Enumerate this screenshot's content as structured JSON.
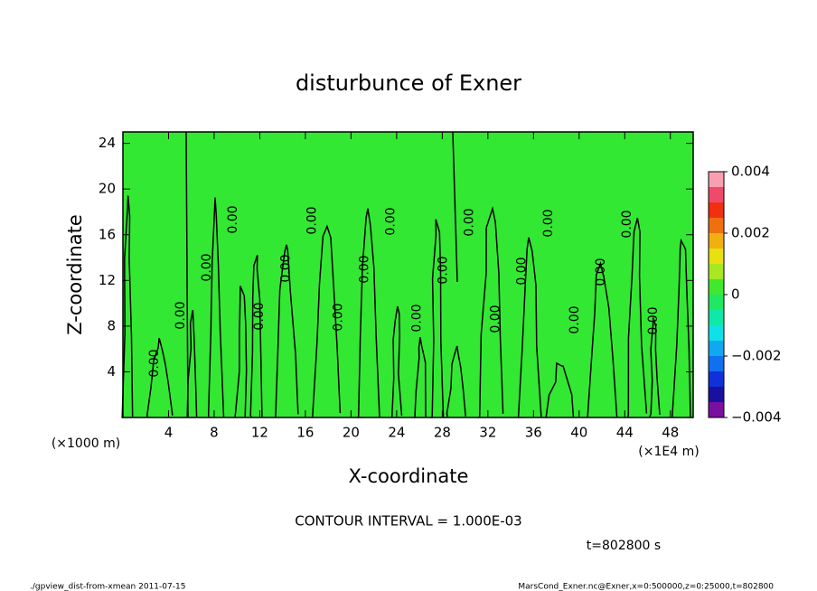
{
  "chart_data": {
    "type": "contour",
    "title": "disturbunce of Exner",
    "xlabel": "X-coordinate",
    "ylabel": "Z-coordinate",
    "xunit": "(×1E4 m)",
    "yunit": "(×1000 m)",
    "xlim": [
      0,
      50
    ],
    "xticks": [
      4,
      8,
      12,
      16,
      20,
      24,
      28,
      32,
      36,
      40,
      44,
      48
    ],
    "ylim": [
      0,
      25
    ],
    "yticks": [
      4,
      8,
      12,
      16,
      20,
      24
    ],
    "field_color": "#33e833",
    "line_color": "#000000",
    "contour_labels": [
      "0.00",
      "0.00",
      "0.00",
      "0.00",
      "0.00",
      "0.00",
      "0.00",
      "0.00",
      "0.00",
      "0.00",
      "0.00",
      "0.00",
      "0.00",
      "0.00",
      "0.00",
      "0.00",
      "0.00",
      "0.00",
      "0.00",
      "0.00"
    ],
    "colorbar": {
      "lim": [
        -0.004,
        0.004
      ],
      "ticks": [
        0.004,
        0.002,
        0,
        {
          "value": -0.002,
          "label": "−0.002"
        },
        {
          "value": -0.004,
          "label": "−0.004"
        }
      ],
      "colors": [
        "#7a10a0",
        "#1a10a0",
        "#1030d8",
        "#1070f0",
        "#10a8f0",
        "#10e0e8",
        "#10e8a8",
        "#20e860",
        "#40e830",
        "#a8e820",
        "#e8e010",
        "#f0b010",
        "#f07010",
        "#f03010",
        "#f04a6a",
        "#f8a0b0"
      ]
    },
    "annotation": "CONTOUR INTERVAL = 1.000E-03",
    "time_label": "t=802800 s",
    "footer_left": "./gpview_dist-from-xmean  2011-07-15",
    "footer_right": "MarsCond_Exner.nc@Exner,x=0:500000,z=0:25000,t=802800"
  }
}
